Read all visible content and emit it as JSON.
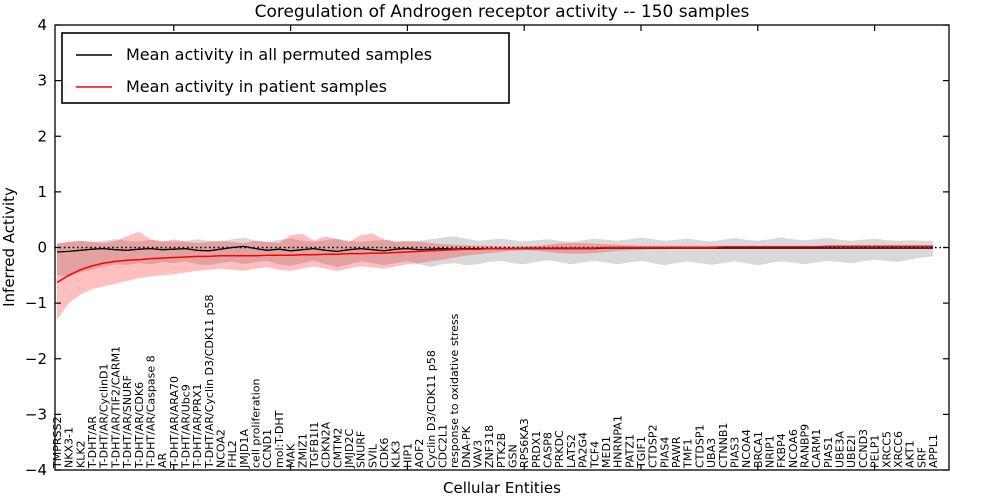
{
  "chart_data": {
    "type": "line",
    "title": "Coregulation of Androgen receptor activity -- 150 samples",
    "xlabel": "Cellular Entities",
    "ylabel": "Inferred Activity",
    "ylim": [
      -4,
      4
    ],
    "ytick_values": [
      4,
      3,
      2,
      1,
      0,
      -1,
      -2,
      -3,
      -4
    ],
    "ytick_labels": [
      "4",
      "3",
      "2",
      "1",
      "0",
      "−1",
      "−2",
      "−3",
      "−4"
    ],
    "xtick_positions": [
      10,
      20,
      30,
      40,
      50,
      60,
      70
    ],
    "grid": false,
    "reference_line": 0,
    "legend_position": "upper left",
    "categories": [
      "TMPRSS2",
      "NKX3-1",
      "KLK2",
      "T-DHT/AR",
      "T-DHT/AR/CyclinD1",
      "T-DHT/AR/TIF2/CARM1",
      "T-DHT/AR/SNURF",
      "T-DHT/AR/CDK6",
      "T-DHT/AR/Caspase 8",
      "AR",
      "T-DHT/AR/ARA70",
      "T-DHT/AR/Ubc9",
      "T-DHT/AR/PRX1",
      "T-DHT/AR/Cyclin D3/CDK11 p58",
      "NCOA2",
      "FHL2",
      "JMJD1A",
      "cell proliferation",
      "CCND1",
      "mol:T-DHT",
      "MAK",
      "ZMIZ1",
      "TGFB1I1",
      "CDKN2A",
      "CMTM2",
      "JMJD2C",
      "SNURF",
      "SVIL",
      "CDK6",
      "KLK3",
      "HIP1",
      "AOF2",
      "Cyclin D3/CDK11 p58",
      "CDC2L1",
      "response to oxidative stress",
      "DNA-PK",
      "VAV3",
      "ZNF318",
      "PTK2B",
      "GSN",
      "RPS6KA3",
      "PRDX1",
      "CASP8",
      "PRKDC",
      "LATS2",
      "PA2G4",
      "TCF4",
      "MED1",
      "HNRNPA1",
      "PATZ1",
      "TGIF1",
      "CTDSP2",
      "PIAS4",
      "PAWR",
      "TMF1",
      "CTDSP1",
      "UBA3",
      "CTNNB1",
      "PIAS3",
      "NCOA4",
      "BRCA1",
      "NRIP1",
      "FKBP4",
      "NCOA6",
      "RANBP9",
      "CARM1",
      "PIAS1",
      "UBE3A",
      "UBE2I",
      "CCND3",
      "PELP1",
      "XRCC5",
      "XRCC6",
      "AKT1",
      "SRF",
      "APPL1"
    ],
    "series": [
      {
        "name": "Mean activity in all permuted samples",
        "color": "#000000",
        "band_color": "#808080",
        "mean": [
          -0.08,
          -0.07,
          -0.05,
          -0.03,
          -0.02,
          -0.04,
          -0.05,
          -0.03,
          -0.02,
          -0.04,
          -0.03,
          -0.02,
          -0.05,
          -0.06,
          -0.03,
          0.0,
          0.02,
          -0.02,
          -0.05,
          -0.03,
          -0.06,
          -0.04,
          -0.02,
          -0.05,
          -0.07,
          -0.04,
          -0.02,
          -0.04,
          -0.06,
          -0.03,
          -0.02,
          -0.04,
          -0.03,
          -0.02,
          -0.03,
          -0.02,
          -0.02,
          -0.02,
          -0.02,
          -0.02,
          -0.02,
          -0.02,
          -0.02,
          -0.02,
          -0.02,
          -0.02,
          -0.02,
          -0.01,
          -0.01,
          -0.01,
          -0.01,
          -0.01,
          -0.01,
          -0.01,
          -0.01,
          -0.01,
          -0.01,
          -0.01,
          -0.01,
          -0.01,
          -0.01,
          -0.01,
          -0.01,
          -0.01,
          -0.01,
          -0.01,
          -0.01,
          -0.01,
          -0.01,
          -0.01,
          -0.01,
          -0.01,
          -0.01,
          -0.01,
          -0.01,
          -0.01
        ],
        "band_upper": [
          0.07,
          0.1,
          0.12,
          0.1,
          0.12,
          0.15,
          0.12,
          0.1,
          0.14,
          0.12,
          0.1,
          0.12,
          0.15,
          0.12,
          0.1,
          0.15,
          0.18,
          0.12,
          0.1,
          0.14,
          0.16,
          0.12,
          0.1,
          0.13,
          0.16,
          0.12,
          0.1,
          0.12,
          0.14,
          0.11,
          0.1,
          0.12,
          0.15,
          0.18,
          0.2,
          0.16,
          0.12,
          0.14,
          0.16,
          0.13,
          0.11,
          0.13,
          0.15,
          0.12,
          0.1,
          0.13,
          0.16,
          0.14,
          0.12,
          0.15,
          0.18,
          0.15,
          0.12,
          0.14,
          0.16,
          0.13,
          0.11,
          0.14,
          0.17,
          0.14,
          0.12,
          0.15,
          0.18,
          0.15,
          0.13,
          0.15,
          0.17,
          0.14,
          0.12,
          0.14,
          0.16,
          0.13,
          0.12,
          0.13,
          0.12,
          0.12
        ],
        "band_lower": [
          -0.5,
          -0.52,
          -0.45,
          -0.4,
          -0.35,
          -0.3,
          -0.32,
          -0.28,
          -0.3,
          -0.26,
          -0.28,
          -0.25,
          -0.3,
          -0.32,
          -0.28,
          -0.25,
          -0.3,
          -0.26,
          -0.24,
          -0.3,
          -0.33,
          -0.28,
          -0.24,
          -0.3,
          -0.35,
          -0.3,
          -0.25,
          -0.28,
          -0.32,
          -0.28,
          -0.25,
          -0.3,
          -0.35,
          -0.3,
          -0.28,
          -0.32,
          -0.3,
          -0.26,
          -0.24,
          -0.28,
          -0.3,
          -0.26,
          -0.23,
          -0.26,
          -0.3,
          -0.27,
          -0.24,
          -0.27,
          -0.3,
          -0.27,
          -0.24,
          -0.28,
          -0.32,
          -0.28,
          -0.25,
          -0.28,
          -0.31,
          -0.28,
          -0.25,
          -0.28,
          -0.32,
          -0.28,
          -0.25,
          -0.27,
          -0.3,
          -0.27,
          -0.24,
          -0.26,
          -0.28,
          -0.25,
          -0.22,
          -0.24,
          -0.26,
          -0.22,
          -0.18,
          -0.16
        ]
      },
      {
        "name": "Mean activity in patient samples",
        "color": "#ff0000",
        "band_color": "#ff0000",
        "mean": [
          -0.63,
          -0.5,
          -0.4,
          -0.33,
          -0.28,
          -0.25,
          -0.23,
          -0.22,
          -0.2,
          -0.19,
          -0.18,
          -0.17,
          -0.16,
          -0.16,
          -0.15,
          -0.15,
          -0.15,
          -0.15,
          -0.14,
          -0.14,
          -0.14,
          -0.13,
          -0.13,
          -0.12,
          -0.12,
          -0.11,
          -0.11,
          -0.1,
          -0.1,
          -0.09,
          -0.08,
          -0.07,
          -0.06,
          -0.05,
          -0.04,
          -0.03,
          -0.03,
          -0.02,
          -0.02,
          -0.02,
          -0.01,
          -0.01,
          -0.01,
          -0.01,
          -0.01,
          -0.01,
          -0.01,
          0.0,
          0.0,
          0.0,
          0.0,
          0.0,
          0.0,
          0.0,
          0.0,
          0.0,
          0.0,
          0.01,
          0.01,
          0.01,
          0.01,
          0.01,
          0.01,
          0.01,
          0.01,
          0.01,
          0.02,
          0.02,
          0.02,
          0.02,
          0.02,
          0.02,
          0.02,
          0.02,
          0.02,
          0.02
        ],
        "band_upper": [
          0.07,
          0.1,
          0.12,
          0.1,
          0.08,
          0.12,
          0.2,
          0.28,
          0.15,
          0.1,
          0.15,
          0.1,
          0.08,
          0.1,
          0.12,
          0.1,
          0.08,
          0.12,
          0.1,
          0.08,
          0.22,
          0.25,
          0.12,
          0.2,
          0.15,
          0.1,
          0.22,
          0.25,
          0.15,
          0.1,
          0.12,
          0.1,
          0.08,
          0.06,
          0.05,
          0.04,
          0.03,
          0.03,
          0.02,
          0.02,
          0.02,
          0.03,
          0.05,
          0.07,
          0.08,
          0.08,
          0.07,
          0.06,
          0.05,
          0.04,
          0.03,
          0.03,
          0.03,
          0.03,
          0.03,
          0.03,
          0.03,
          0.03,
          0.03,
          0.03,
          0.03,
          0.03,
          0.03,
          0.03,
          0.03,
          0.03,
          0.04,
          0.04,
          0.04,
          0.04,
          0.04,
          0.04,
          0.04,
          0.04,
          0.04,
          0.04
        ],
        "band_lower": [
          -1.3,
          -1.0,
          -0.85,
          -0.75,
          -0.7,
          -0.65,
          -0.6,
          -0.55,
          -0.52,
          -0.5,
          -0.48,
          -0.45,
          -0.42,
          -0.4,
          -0.38,
          -0.4,
          -0.42,
          -0.38,
          -0.35,
          -0.4,
          -0.42,
          -0.38,
          -0.34,
          -0.38,
          -0.42,
          -0.38,
          -0.34,
          -0.36,
          -0.38,
          -0.34,
          -0.3,
          -0.28,
          -0.25,
          -0.22,
          -0.18,
          -0.15,
          -0.12,
          -0.1,
          -0.08,
          -0.06,
          -0.05,
          -0.06,
          -0.08,
          -0.1,
          -0.11,
          -0.11,
          -0.1,
          -0.08,
          -0.06,
          -0.05,
          -0.04,
          -0.03,
          -0.03,
          -0.02,
          -0.02,
          -0.02,
          -0.02,
          -0.02,
          -0.02,
          -0.02,
          -0.02,
          -0.02,
          -0.02,
          -0.01,
          -0.01,
          -0.01,
          -0.01,
          -0.01,
          -0.01,
          -0.01,
          -0.01,
          -0.01,
          -0.01,
          -0.01,
          -0.01,
          -0.01
        ]
      }
    ]
  },
  "legend": {
    "entries": [
      {
        "label": "Mean activity in all permuted samples",
        "color": "#000000"
      },
      {
        "label": "Mean activity in patient samples",
        "color": "#ff0000"
      }
    ]
  }
}
